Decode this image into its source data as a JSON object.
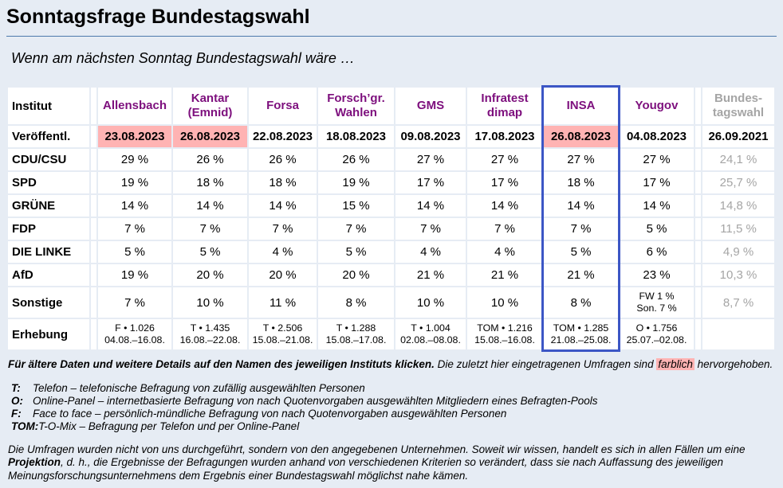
{
  "page": {
    "title": "Sonntagsfrage Bundestagswahl",
    "subtitle": "Wenn am nächsten Sonntag Bundestagswahl wäre …"
  },
  "colors": {
    "background": "#e6ecf4",
    "cell_background": "#ffffff",
    "highlight_pink": "#ffb3b3",
    "institute_link_purple": "#7d0f7d",
    "muted_gray": "#a5a5a5",
    "insa_box_blue": "#3c56c5",
    "title_rule_blue": "#4d7aab"
  },
  "table": {
    "row_labels": {
      "institut": "Institut",
      "veroeffentl": "Veröffentl.",
      "sonstige": "Sonstige",
      "erhebung": "Erhebung"
    },
    "parties": [
      "CDU/CSU",
      "SPD",
      "GRÜNE",
      "FDP",
      "DIE LINKE",
      "AfD"
    ],
    "institutes": [
      {
        "name1": "Allensbach",
        "name2": "",
        "date": "23.08.2023",
        "highlighted": true,
        "cdu": "29 %",
        "spd": "19 %",
        "gruene": "14 %",
        "fdp": "7 %",
        "linke": "5 %",
        "afd": "19 %",
        "sonstige": "7 %",
        "erhebung1": "F • 1.026",
        "erhebung2": "04.08.–16.08."
      },
      {
        "name1": "Kantar",
        "name2": "(Emnid)",
        "date": "26.08.2023",
        "highlighted": true,
        "cdu": "26 %",
        "spd": "18 %",
        "gruene": "14 %",
        "fdp": "7 %",
        "linke": "5 %",
        "afd": "20 %",
        "sonstige": "10 %",
        "erhebung1": "T • 1.435",
        "erhebung2": "16.08.–22.08."
      },
      {
        "name1": "Forsa",
        "name2": "",
        "date": "22.08.2023",
        "highlighted": false,
        "cdu": "26 %",
        "spd": "18 %",
        "gruene": "14 %",
        "fdp": "7 %",
        "linke": "4 %",
        "afd": "20 %",
        "sonstige": "11 %",
        "erhebung1": "T • 2.506",
        "erhebung2": "15.08.–21.08."
      },
      {
        "name1": "Forsch’gr.",
        "name2": "Wahlen",
        "date": "18.08.2023",
        "highlighted": false,
        "cdu": "26 %",
        "spd": "19 %",
        "gruene": "15 %",
        "fdp": "7 %",
        "linke": "5 %",
        "afd": "20 %",
        "sonstige": "8 %",
        "erhebung1": "T • 1.288",
        "erhebung2": "15.08.–17.08."
      },
      {
        "name1": "GMS",
        "name2": "",
        "date": "09.08.2023",
        "highlighted": false,
        "cdu": "27 %",
        "spd": "17 %",
        "gruene": "14 %",
        "fdp": "7 %",
        "linke": "4 %",
        "afd": "21 %",
        "sonstige": "10 %",
        "erhebung1": "T • 1.004",
        "erhebung2": "02.08.–08.08."
      },
      {
        "name1": "Infratest",
        "name2": "dimap",
        "date": "17.08.2023",
        "highlighted": false,
        "cdu": "27 %",
        "spd": "17 %",
        "gruene": "14 %",
        "fdp": "7 %",
        "linke": "4 %",
        "afd": "21 %",
        "sonstige": "10 %",
        "erhebung1": "TOM • 1.216",
        "erhebung2": "15.08.–16.08."
      },
      {
        "name1": "INSA",
        "name2": "",
        "date": "26.08.2023",
        "highlighted": true,
        "boxed": true,
        "cdu": "27 %",
        "spd": "18 %",
        "gruene": "14 %",
        "fdp": "7 %",
        "linke": "5 %",
        "afd": "21 %",
        "sonstige": "8 %",
        "erhebung1": "TOM • 1.285",
        "erhebung2": "21.08.–25.08."
      },
      {
        "name1": "Yougov",
        "name2": "",
        "date": "04.08.2023",
        "highlighted": false,
        "cdu": "27 %",
        "spd": "17 %",
        "gruene": "14 %",
        "fdp": "5 %",
        "linke": "6 %",
        "afd": "23 %",
        "sonstige1": "FW 1 %",
        "sonstige2": "Son. 7 %",
        "erhebung1": "O • 1.756",
        "erhebung2": "25.07.–02.08."
      }
    ],
    "bundestagswahl": {
      "name1": "Bundes-",
      "name2": "tagswahl",
      "date": "26.09.2021",
      "cdu": "24,1 %",
      "spd": "25,7 %",
      "gruene": "14,8 %",
      "fdp": "11,5 %",
      "linke": "4,9 %",
      "afd": "10,3 %",
      "sonstige": "8,7 %",
      "erhebung": ""
    }
  },
  "notes": {
    "click_bold": "Für ältere Daten und weitere Details auf den Namen des jeweiligen Instituts klicken.",
    "click_rest_before": "Die zuletzt hier eingetragenen Umfragen sind",
    "highlight_word": "farblich",
    "click_rest_after": "hervorgehoben.",
    "legend": [
      {
        "key": "T:",
        "text": "Telefon – telefonische Befragung von zufällig ausgewählten Personen"
      },
      {
        "key": "O:",
        "text": "Online-Panel – internetbasierte Befragung von nach Quotenvorgaben ausgewählten Mitgliedern eines Befragten-Pools"
      },
      {
        "key": "F:",
        "text": "Face to face – persönlich-mündliche Befragung von nach Quotenvorgaben ausgewählten Personen"
      },
      {
        "key": "TOM:",
        "text": "T-O-Mix – Befragung per Telefon und per Online-Panel"
      }
    ],
    "disclaimer_start": "Die Umfragen wurden nicht von uns durchgeführt, sondern von den angegebenen Unternehmen. Soweit wir wissen, handelt es sich in allen Fällen um eine",
    "disclaimer_bold": "Projektion",
    "disclaimer_end": ", d. h., die Ergebnisse der Befragungen wurden anhand von verschiedenen Kriterien so verändert, dass sie nach Auffassung des jeweiligen Meinungsforschungsunternehmens dem Ergebnis einer Bundestagswahl möglichst nahe kämen."
  }
}
